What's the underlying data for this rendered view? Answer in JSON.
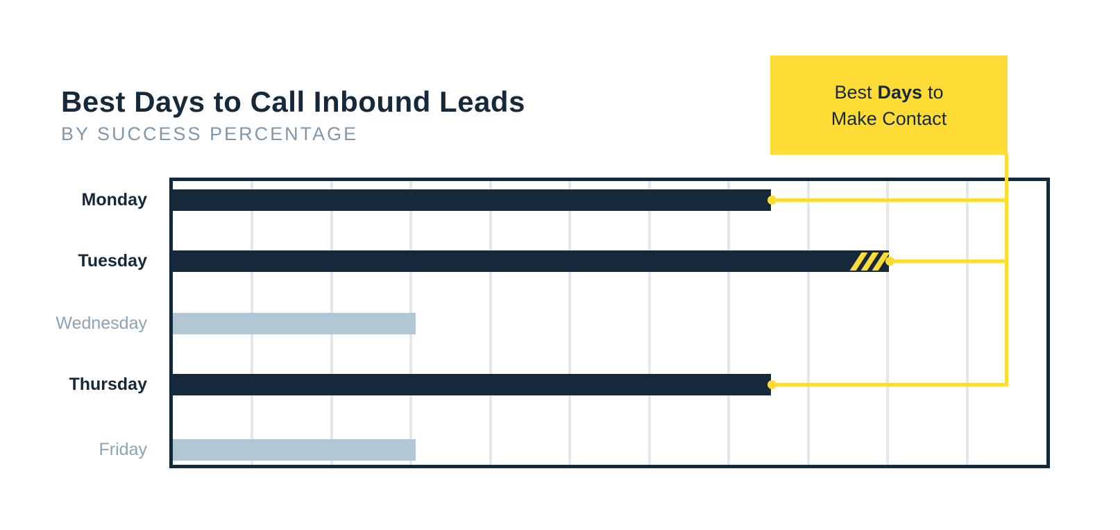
{
  "header": {
    "title": "Best Days to Call Inbound Leads",
    "subtitle": "BY SUCCESS PERCENTAGE"
  },
  "callout": {
    "word1": "Best",
    "word2": "Days",
    "word3": "to",
    "line2": "Make Contact"
  },
  "colors": {
    "navy": "#16293A",
    "light_blue": "#B2C7D5",
    "yellow": "#FFDB35",
    "subtitle_text": "#7F97AB",
    "muted_label": "#8CA3B6",
    "gridline": "#E3E8EC",
    "background": "#FFFFFF"
  },
  "chart_data": {
    "type": "bar",
    "orientation": "horizontal",
    "title": "Best Days to Call Inbound Leads",
    "subtitle": "BY SUCCESS PERCENTAGE",
    "categories": [
      "Monday",
      "Tuesday",
      "Wednesday",
      "Thursday",
      "Friday"
    ],
    "series": [
      {
        "name": "Success percentage",
        "values": [
          68.5,
          82.0,
          27.8,
          68.5,
          27.8
        ]
      }
    ],
    "value_note": "axis has no numeric tick labels; values estimated as percent of plot width",
    "xlim": [
      0,
      100
    ],
    "grid": "vertical",
    "gridline_divisions": 11,
    "highlighted_categories": [
      "Monday",
      "Tuesday",
      "Thursday"
    ],
    "muted_categories": [
      "Wednesday",
      "Friday"
    ],
    "top_category": "Tuesday",
    "annotation": {
      "text": "Best Days to Make Contact",
      "connected_to": [
        "Monday",
        "Tuesday",
        "Thursday"
      ],
      "legend_position": "top-right"
    }
  }
}
